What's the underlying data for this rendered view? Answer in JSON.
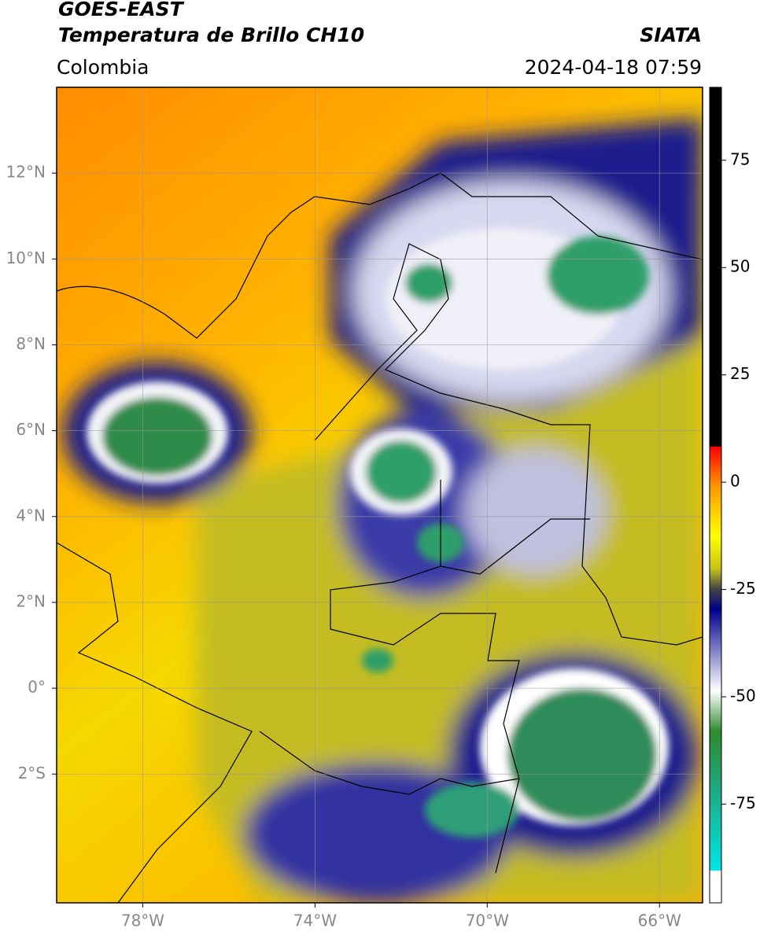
{
  "header": {
    "source": "GOES-EAST",
    "product": "Temperatura de Brillo CH10",
    "region": "Colombia",
    "agency": "SIATA",
    "timestamp": "2024-04-18 07:59"
  },
  "map": {
    "xlim": [
      -80,
      -65
    ],
    "ylim": [
      -5,
      14
    ],
    "xticks": [
      {
        "value": -78,
        "label": "78°W"
      },
      {
        "value": -74,
        "label": "74°W"
      },
      {
        "value": -70,
        "label": "70°W"
      },
      {
        "value": -66,
        "label": "66°W"
      }
    ],
    "yticks": [
      {
        "value": -2,
        "label": "2°S"
      },
      {
        "value": 0,
        "label": "0°"
      },
      {
        "value": 2,
        "label": "2°N"
      },
      {
        "value": 4,
        "label": "4°N"
      },
      {
        "value": 6,
        "label": "6°N"
      },
      {
        "value": 8,
        "label": "8°N"
      },
      {
        "value": 10,
        "label": "10°N"
      },
      {
        "value": 12,
        "label": "12°N"
      }
    ],
    "grid": true
  },
  "colorbar": {
    "lim": [
      -98,
      92
    ],
    "ticks": [
      -75,
      -50,
      -25,
      0,
      25,
      50,
      75
    ]
  }
}
